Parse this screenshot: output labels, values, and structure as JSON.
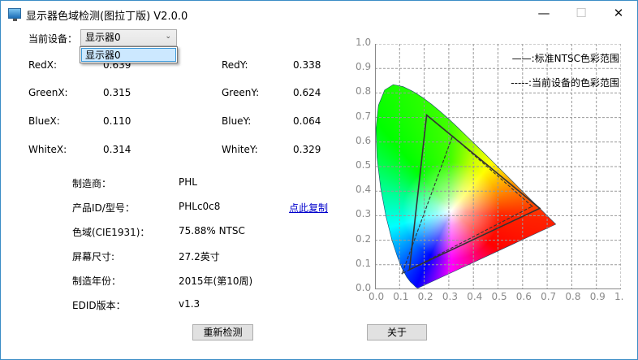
{
  "window": {
    "title": "显示器色域检测(图拉丁版) V2.0.0",
    "controls": {
      "minimize": "—",
      "maximize": "☐",
      "close": "✕"
    }
  },
  "device": {
    "label": "当前设备：",
    "selected": "显示器0",
    "options": [
      "显示器0"
    ]
  },
  "coords": [
    {
      "xlabel": "RedX:",
      "x": "0.639",
      "ylabel": "RedY:",
      "y": "0.338"
    },
    {
      "xlabel": "GreenX:",
      "x": "0.315",
      "ylabel": "GreenY:",
      "y": "0.624"
    },
    {
      "xlabel": "BlueX:",
      "x": "0.110",
      "ylabel": "BlueY:",
      "y": "0.064"
    },
    {
      "xlabel": "WhiteX:",
      "x": "0.314",
      "ylabel": "WhiteY:",
      "y": "0.329"
    }
  ],
  "info": [
    {
      "label": "制造商：",
      "value": "PHL"
    },
    {
      "label": "产品ID/型号：",
      "value": "PHLc0c8"
    },
    {
      "label": "色域(CIE1931)：",
      "value": "75.88% NTSC"
    },
    {
      "label": "屏幕尺寸:",
      "value": "27.2英寸"
    },
    {
      "label": "制造年份：",
      "value": "2015年(第10周)"
    },
    {
      "label": "EDID版本：",
      "value": "v1.3"
    }
  ],
  "copy_link": "点此复制",
  "buttons": {
    "redetect": "重新检测",
    "about": "关于"
  },
  "chart_data": {
    "type": "scatter",
    "title": "",
    "xlim": [
      0,
      1
    ],
    "ylim": [
      0,
      1
    ],
    "xticks": [
      "0.0",
      "0.1",
      "0.2",
      "0.3",
      "0.4",
      "0.5",
      "0.6",
      "0.7",
      "0.8",
      "0.9",
      "1."
    ],
    "yticks": [
      "0.0",
      "0.1",
      "0.2",
      "0.3",
      "0.4",
      "0.5",
      "0.6",
      "0.7",
      "0.8",
      "0.9",
      "1.0"
    ],
    "grid": true,
    "legend_position": "top-right",
    "series": [
      {
        "name": "——:标准NTSC色彩范围",
        "style": "solid",
        "points": [
          [
            0.67,
            0.33
          ],
          [
            0.21,
            0.71
          ],
          [
            0.14,
            0.08
          ]
        ]
      },
      {
        "name": "-----:当前设备的色彩范围",
        "style": "dashed",
        "points": [
          [
            0.639,
            0.338
          ],
          [
            0.315,
            0.624
          ],
          [
            0.11,
            0.064
          ]
        ]
      }
    ],
    "line_color": "#333333"
  }
}
